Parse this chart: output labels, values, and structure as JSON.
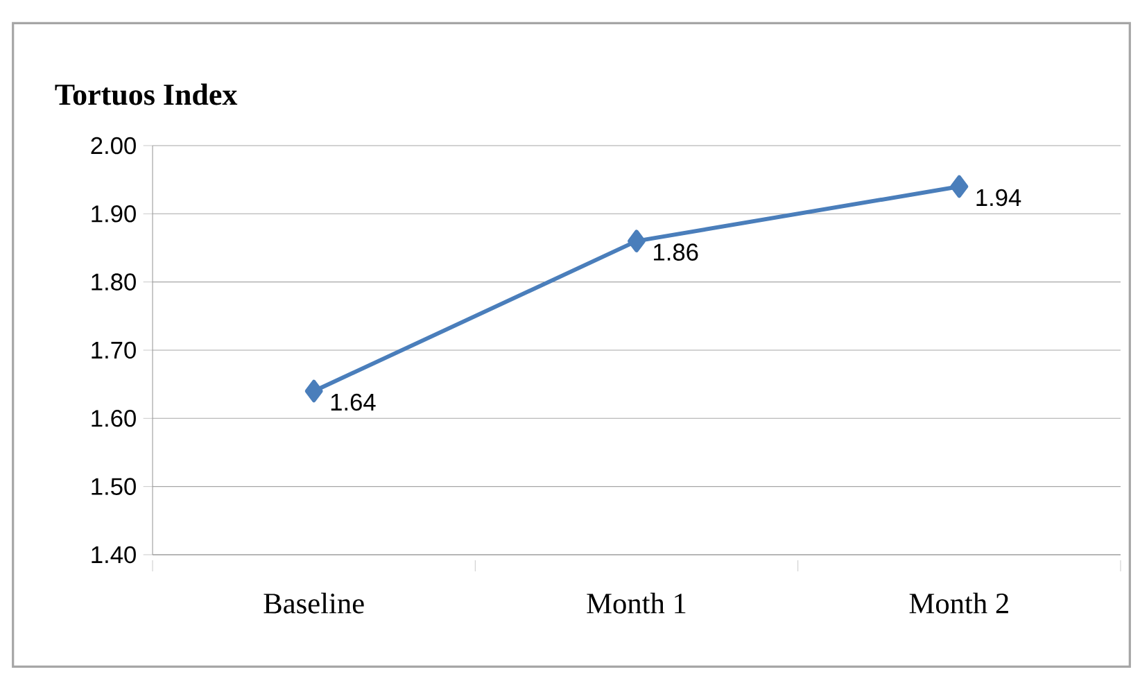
{
  "chart_data": {
    "type": "line",
    "title": "Tortuos Index",
    "categories": [
      "Baseline",
      "Month 1",
      "Month 2"
    ],
    "values": [
      1.64,
      1.86,
      1.94
    ],
    "color": "#4a7ebb",
    "marker": "diamond",
    "data_labels": true,
    "grid": "y",
    "ylim": [
      1.4,
      2.0
    ],
    "yticks": [
      {
        "value": 1.4,
        "label": "1.40"
      },
      {
        "value": 1.5,
        "label": "1.50"
      },
      {
        "value": 1.6,
        "label": "1.60"
      },
      {
        "value": 1.7,
        "label": "1.70"
      },
      {
        "value": 1.8,
        "label": "1.80"
      },
      {
        "value": 1.9,
        "label": "1.90"
      },
      {
        "value": 2.0,
        "label": "2.00"
      }
    ]
  }
}
